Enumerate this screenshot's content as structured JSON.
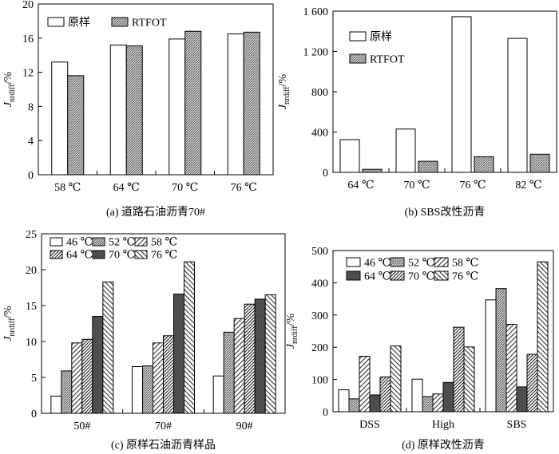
{
  "figure": {
    "panels": 4
  },
  "chart_data": [
    {
      "type": "bar",
      "caption": "(a) 道路石油沥青70#",
      "ylabel_main": "J",
      "ylabel_sub": "nrdiff",
      "ylabel_unit": "/%",
      "categories": [
        "58 ℃",
        "64 ℃",
        "70 ℃",
        "76 ℃"
      ],
      "series": [
        {
          "name": "原样",
          "pattern": "white",
          "values": [
            13.2,
            15.2,
            15.9,
            16.5
          ]
        },
        {
          "name": "RTFOT",
          "pattern": "dots",
          "values": [
            11.6,
            15.1,
            16.8,
            16.7
          ]
        }
      ],
      "ylim": [
        0,
        20
      ],
      "yticks": [
        "0",
        "4",
        "8",
        "12",
        "16",
        "20"
      ],
      "tick_values": [
        0,
        4,
        8,
        12,
        16,
        20
      ],
      "legend_position": "top-left"
    },
    {
      "type": "bar",
      "caption": "(b) SBS改性沥青",
      "ylabel_main": "J",
      "ylabel_sub": "nrdiff",
      "ylabel_unit": "/%",
      "categories": [
        "64 ℃",
        "70 ℃",
        "76 ℃",
        "82 ℃"
      ],
      "series": [
        {
          "name": "原样",
          "pattern": "white",
          "values": [
            325,
            430,
            1545,
            1330
          ]
        },
        {
          "name": "RTFOT",
          "pattern": "dots",
          "values": [
            30,
            110,
            155,
            180
          ]
        }
      ],
      "ylim": [
        0,
        1600
      ],
      "yticks": [
        "0",
        "400",
        "800",
        "1 200",
        "1 600"
      ],
      "tick_values": [
        0,
        400,
        800,
        1200,
        1600
      ],
      "legend_position": "top-left"
    },
    {
      "type": "bar",
      "caption": "(c) 原样石油沥青样品",
      "ylabel_main": "J",
      "ylabel_sub": "nrdiff",
      "ylabel_unit": "/%",
      "categories": [
        "50#",
        "70#",
        "90#"
      ],
      "series": [
        {
          "name": "46 ℃",
          "pattern": "white",
          "values": [
            2.4,
            6.5,
            5.2
          ]
        },
        {
          "name": "52 ℃",
          "pattern": "dots",
          "values": [
            5.9,
            6.6,
            11.3
          ]
        },
        {
          "name": "58 ℃",
          "pattern": "hatch-fwd",
          "values": [
            9.8,
            9.8,
            13.2
          ]
        },
        {
          "name": "64 ℃",
          "pattern": "hatch-fwd-dense",
          "values": [
            10.3,
            10.8,
            15.2
          ]
        },
        {
          "name": "70 ℃",
          "pattern": "dark-dots",
          "values": [
            13.5,
            16.6,
            15.9
          ]
        },
        {
          "name": "76 ℃",
          "pattern": "hatch-back",
          "values": [
            18.3,
            21.1,
            16.5
          ]
        }
      ],
      "ylim": [
        0,
        25
      ],
      "yticks": [
        "0",
        "5",
        "10",
        "15",
        "20",
        "25"
      ],
      "tick_values": [
        0,
        5,
        10,
        15,
        20,
        25
      ],
      "legend_position": "top-left"
    },
    {
      "type": "bar",
      "caption": "(d) 原样改性沥青",
      "ylabel_main": "J",
      "ylabel_sub": "nrdiff",
      "ylabel_unit": "/%",
      "categories": [
        "DSS",
        "High",
        "SBS"
      ],
      "series": [
        {
          "name": "46 ℃",
          "pattern": "white",
          "values": [
            68,
            101,
            347
          ]
        },
        {
          "name": "52 ℃",
          "pattern": "dots",
          "values": [
            40,
            47,
            382
          ]
        },
        {
          "name": "58 ℃",
          "pattern": "hatch-fwd",
          "values": [
            172,
            55,
            271
          ]
        },
        {
          "name": "64 ℃",
          "pattern": "dark-dots",
          "values": [
            52,
            91,
            77
          ]
        },
        {
          "name": "70 ℃",
          "pattern": "hatch-fwd-dense",
          "values": [
            108,
            262,
            178
          ]
        },
        {
          "name": "76 ℃",
          "pattern": "hatch-back",
          "values": [
            204,
            201,
            465
          ]
        }
      ],
      "ylim": [
        0,
        500
      ],
      "yticks": [
        "0",
        "100",
        "200",
        "300",
        "400",
        "500"
      ],
      "tick_values": [
        0,
        100,
        200,
        300,
        400,
        500
      ],
      "legend_position": "top-left"
    }
  ]
}
